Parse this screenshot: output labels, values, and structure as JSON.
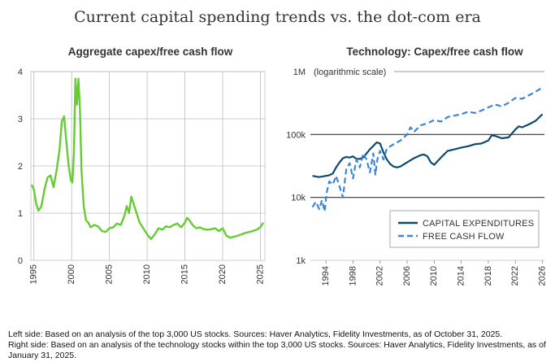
{
  "title": "Current capital spending trends vs. the dot-com era",
  "notes": {
    "left": "Left side: Based on an analysis of the top 3,000 US stocks. Sources: Haver Analytics, Fidelity Investments, as of October 31, 2025.",
    "right": "Right side: Based on an analysis of the technology stocks within the top 3,000 US stocks. Sources: Haver Analytics, Fidelity Investments, as of January 31, 2025."
  },
  "colors": {
    "left_line": "#66cc33",
    "capex": "#0d4a6e",
    "fcf": "#3d85d9",
    "grid": "#bbbbbb",
    "ref_line": "#333333"
  },
  "chart_data": [
    {
      "type": "line",
      "title": "Aggregate capex/free cash flow",
      "xlabel": "",
      "ylabel": "",
      "xlim": [
        1994.6,
        2025.6
      ],
      "ylim": [
        0,
        4
      ],
      "x_ticks": [
        1995,
        2000,
        2005,
        2010,
        2015,
        2020,
        2025
      ],
      "y_ticks": [
        0,
        1,
        2,
        3,
        4
      ],
      "grid": true,
      "series": [
        {
          "x": [
            1994.7,
            1995.0,
            1995.3,
            1995.6,
            1996.0,
            1996.4,
            1996.8,
            1997.2,
            1997.6,
            1998.0,
            1998.4,
            1998.7,
            1999.0,
            1999.3,
            1999.6,
            1999.9,
            2000.1,
            2000.3,
            2000.5,
            2000.7,
            2000.9,
            2001.1,
            2001.3,
            2001.6,
            2001.9,
            2002.2,
            2002.5,
            2003.0,
            2003.5,
            2004.0,
            2004.5,
            2005.0,
            2005.5,
            2006.0,
            2006.5,
            2007.0,
            2007.3,
            2007.6,
            2007.9,
            2008.3,
            2008.7,
            2009.0,
            2009.5,
            2010.0,
            2010.5,
            2011.0,
            2011.5,
            2012.0,
            2012.5,
            2013.0,
            2013.5,
            2014.0,
            2014.5,
            2015.0,
            2015.3,
            2015.6,
            2016.0,
            2016.5,
            2017.0,
            2017.5,
            2018.0,
            2018.5,
            2019.0,
            2019.5,
            2020.0,
            2020.5,
            2021.0,
            2021.5,
            2022.0,
            2022.5,
            2023.0,
            2023.5,
            2024.0,
            2024.5,
            2025.0,
            2025.4
          ],
          "values": [
            1.6,
            1.5,
            1.2,
            1.05,
            1.15,
            1.5,
            1.75,
            1.8,
            1.55,
            1.9,
            2.35,
            2.95,
            3.05,
            2.5,
            2.0,
            1.7,
            1.65,
            2.3,
            3.85,
            3.3,
            3.85,
            3.2,
            1.95,
            1.15,
            0.85,
            0.8,
            0.7,
            0.75,
            0.72,
            0.62,
            0.6,
            0.68,
            0.7,
            0.78,
            0.75,
            0.95,
            1.15,
            1.0,
            1.35,
            1.15,
            0.95,
            0.8,
            0.68,
            0.55,
            0.45,
            0.55,
            0.68,
            0.65,
            0.72,
            0.7,
            0.75,
            0.78,
            0.7,
            0.8,
            0.9,
            0.85,
            0.75,
            0.68,
            0.7,
            0.66,
            0.65,
            0.66,
            0.68,
            0.62,
            0.68,
            0.52,
            0.48,
            0.5,
            0.52,
            0.55,
            0.58,
            0.6,
            0.62,
            0.65,
            0.7,
            0.8
          ]
        }
      ]
    },
    {
      "type": "line",
      "title": "Technology: Capex/free cash flow",
      "xlabel": "",
      "ylabel": "",
      "y_scale": "log",
      "xlim": [
        1991.7,
        2026.3
      ],
      "ylim": [
        1000,
        1000000
      ],
      "x_ticks": [
        1994,
        1998,
        2002,
        2006,
        2010,
        2014,
        2018,
        2022,
        2026
      ],
      "y_ticks": [
        "1k",
        "10k",
        "100k",
        "1M"
      ],
      "y_top_note": "(logarithmic scale)",
      "grid": true,
      "legend": "bottom-right",
      "series": [
        {
          "name": "CAPITAL EXPENDITURES",
          "style": "solid",
          "x": [
            1992.0,
            1993.0,
            1994.0,
            1994.5,
            1995.0,
            1995.5,
            1996.0,
            1996.5,
            1997.0,
            1997.5,
            1998.0,
            1998.5,
            1999.0,
            1999.5,
            2000.0,
            2000.5,
            2001.0,
            2001.5,
            2002.0,
            2002.5,
            2003.0,
            2003.5,
            2004.0,
            2004.5,
            2005.0,
            2006.0,
            2007.0,
            2008.0,
            2008.5,
            2009.0,
            2009.5,
            2010.0,
            2011.0,
            2012.0,
            2013.0,
            2014.0,
            2015.0,
            2016.0,
            2017.0,
            2018.0,
            2018.5,
            2019.0,
            2020.0,
            2021.0,
            2022.0,
            2022.5,
            2023.0,
            2024.0,
            2025.0,
            2026.0
          ],
          "values": [
            22000,
            21000,
            22000,
            22500,
            24000,
            30000,
            36000,
            42000,
            44000,
            43000,
            45000,
            41000,
            41000,
            43000,
            50000,
            58000,
            66000,
            75000,
            72000,
            52000,
            40000,
            34000,
            31000,
            30000,
            31000,
            36000,
            42000,
            47000,
            48000,
            45000,
            36000,
            33000,
            43000,
            55000,
            58000,
            62000,
            65000,
            70000,
            72000,
            80000,
            97000,
            95000,
            87000,
            90000,
            120000,
            135000,
            130000,
            145000,
            165000,
            210000
          ]
        },
        {
          "name": "FREE CASH FLOW",
          "style": "dashed",
          "x": [
            1992.0,
            1992.5,
            1993.0,
            1993.4,
            1993.8,
            1994.1,
            1994.5,
            1995.0,
            1995.5,
            1996.0,
            1996.5,
            1997.0,
            1997.5,
            1998.0,
            1998.5,
            1999.0,
            1999.5,
            2000.0,
            2000.5,
            2001.0,
            2001.3,
            2001.6,
            2002.0,
            2002.5,
            2003.0,
            2004.0,
            2005.0,
            2006.0,
            2006.5,
            2007.0,
            2008.0,
            2009.0,
            2010.0,
            2011.0,
            2012.0,
            2013.0,
            2014.0,
            2015.0,
            2016.0,
            2017.0,
            2018.0,
            2019.0,
            2020.0,
            2021.0,
            2022.0,
            2023.0,
            2024.0,
            2025.0,
            2026.0
          ],
          "values": [
            7000,
            8500,
            6500,
            9000,
            6000,
            12000,
            18000,
            16000,
            22000,
            15000,
            10000,
            28000,
            35000,
            20000,
            40000,
            30000,
            50000,
            40000,
            25000,
            50000,
            23000,
            40000,
            55000,
            40000,
            60000,
            70000,
            80000,
            100000,
            130000,
            110000,
            140000,
            150000,
            170000,
            160000,
            190000,
            200000,
            210000,
            230000,
            220000,
            240000,
            270000,
            300000,
            280000,
            320000,
            380000,
            370000,
            420000,
            480000,
            560000
          ]
        }
      ]
    }
  ]
}
